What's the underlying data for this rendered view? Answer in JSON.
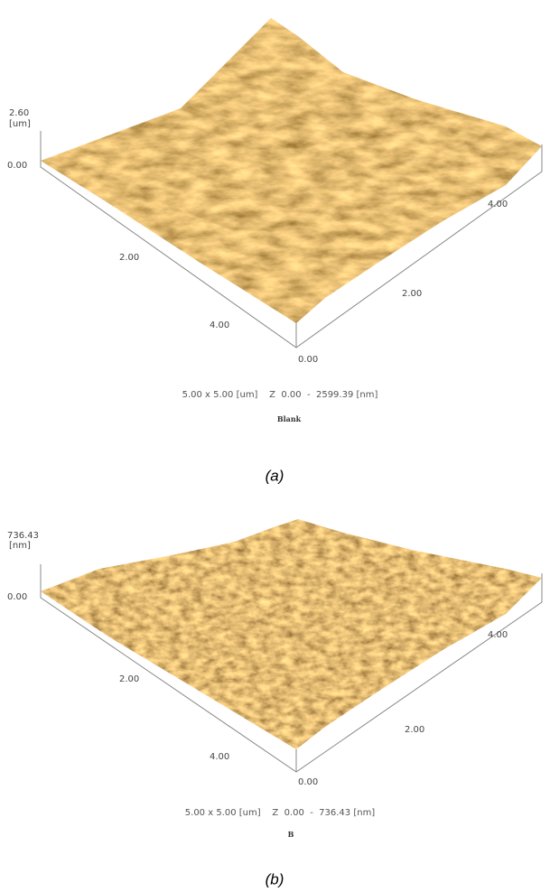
{
  "panels": [
    {
      "z_top": "2.60",
      "z_unit": "[um]",
      "z_zero": "0.00",
      "left_ticks": [
        "2.00",
        "4.00"
      ],
      "corner": "0.00",
      "right_ticks": [
        "2.00",
        "4.00"
      ],
      "caption": "5.00 x 5.00 [um]    Z  0.00  -  2599.39 [nm]",
      "sample": "Blank",
      "label": "(a)"
    },
    {
      "z_top": "736.43",
      "z_unit": "[nm]",
      "z_zero": "0.00",
      "left_ticks": [
        "2.00",
        "4.00"
      ],
      "corner": "0.00",
      "right_ticks": [
        "2.00",
        "4.00"
      ],
      "caption": "5.00 x 5.00 [um]    Z  0.00  -  736.43 [nm]",
      "sample": "B",
      "label": "(b)"
    }
  ]
}
